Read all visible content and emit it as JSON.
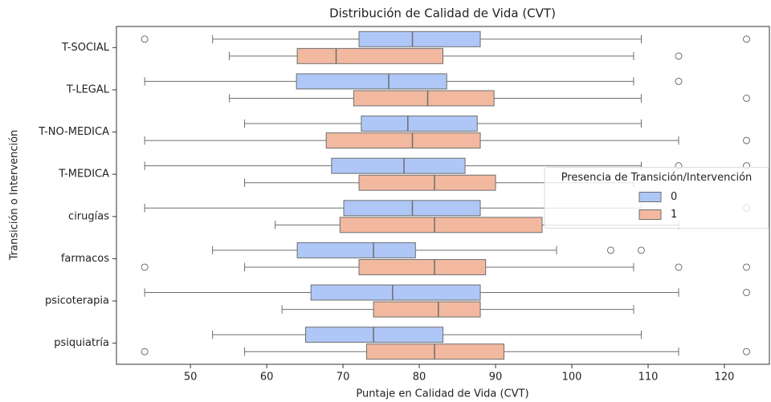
{
  "chart_data": {
    "type": "boxplot",
    "orientation": "horizontal",
    "title": "Distribución de Calidad de Vida (CVT)",
    "xlabel": "Puntaje en Calidad de Vida (CVT)",
    "ylabel": "Transición o Intervención",
    "categories": [
      "T-SOCIAL",
      "T-LEGAL",
      "T-NO-MEDICA",
      "T-MEDICA",
      "cirugías",
      "farmacos",
      "psicoterapia",
      "psiquiatría"
    ],
    "xlim": [
      40.3,
      125.9
    ],
    "xticks": [
      50,
      60,
      70,
      80,
      90,
      100,
      110,
      120
    ],
    "legend_title": "Presencia de Transición/Intervención",
    "legend_loc": "center right",
    "series": [
      {
        "name": "0",
        "color": "#aec7f6",
        "whislo": [
          52.9,
          44.0,
          57.1,
          44.0,
          44.0,
          52.9,
          44.0,
          52.9
        ],
        "q1": [
          72.1,
          63.9,
          72.4,
          68.5,
          70.1,
          64.0,
          65.8,
          65.1
        ],
        "med": [
          79.1,
          76.0,
          78.5,
          78.0,
          79.1,
          74.0,
          76.5,
          74.0
        ],
        "q3": [
          88.0,
          83.6,
          87.6,
          86.0,
          88.0,
          79.5,
          88.0,
          83.1
        ],
        "whishi": [
          109.1,
          108.1,
          109.1,
          109.1,
          109.1,
          98.0,
          114.0,
          109.1
        ],
        "fliers": [
          [
            44.0,
            122.9
          ],
          [
            114.0
          ],
          [],
          [
            114.0,
            122.9
          ],
          [
            122.9
          ],
          [
            105.1,
            109.1
          ],
          [
            122.9
          ],
          []
        ]
      },
      {
        "name": "1",
        "color": "#f2b9a0",
        "whislo": [
          55.1,
          55.1,
          44.0,
          57.1,
          61.1,
          57.1,
          62.0,
          57.1
        ],
        "q1": [
          64.0,
          71.4,
          67.8,
          72.1,
          69.6,
          72.1,
          74.0,
          73.1
        ],
        "med": [
          69.1,
          81.1,
          79.1,
          82.0,
          82.0,
          82.0,
          82.5,
          82.0
        ],
        "q3": [
          83.1,
          89.8,
          88.0,
          90.0,
          96.1,
          88.7,
          88.0,
          91.1
        ],
        "whishi": [
          108.1,
          109.1,
          114.0,
          108.1,
          114.0,
          108.1,
          108.1,
          114.0
        ],
        "fliers": [
          [
            114.0
          ],
          [
            122.9
          ],
          [
            122.9
          ],
          [],
          [],
          [
            44.0,
            114.0,
            122.9
          ],
          [],
          [
            44.0,
            122.9
          ]
        ]
      }
    ]
  }
}
